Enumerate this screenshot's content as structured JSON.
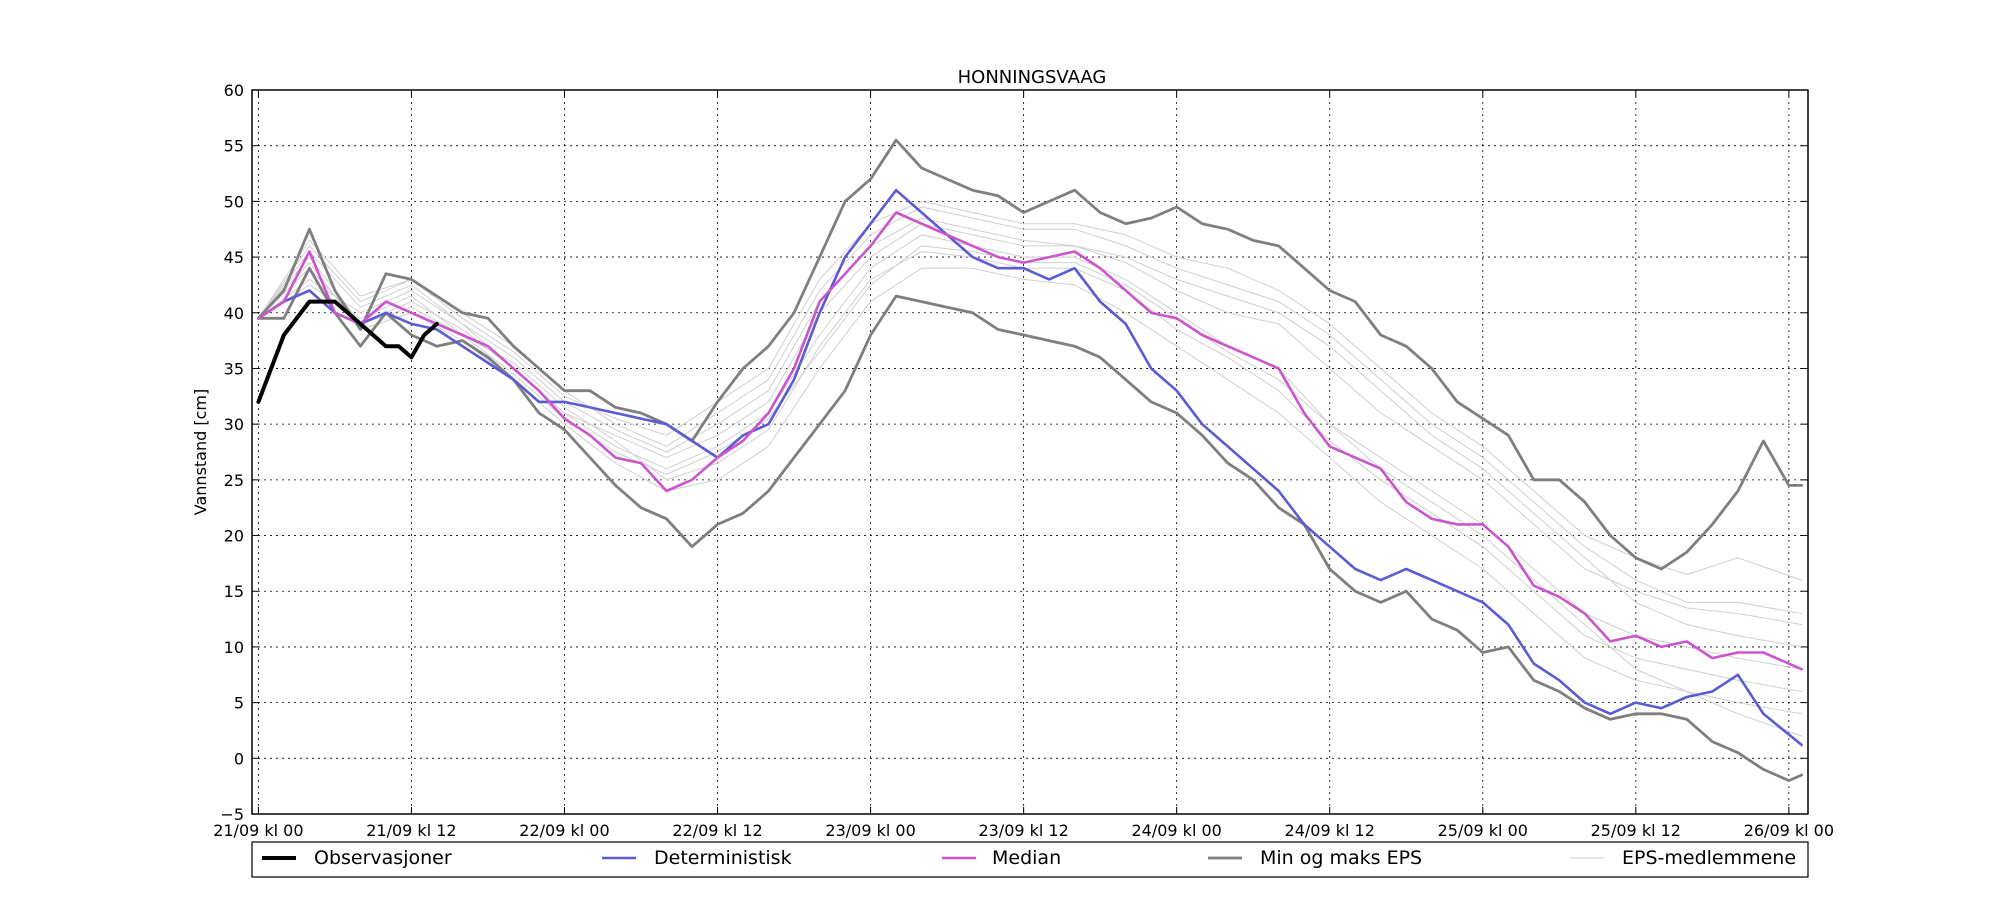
{
  "chart_data": {
    "type": "line",
    "title": "HONNINGSVAAG",
    "xlabel": "",
    "ylabel": "Vannstand [cm]",
    "ylim": [
      -5,
      60
    ],
    "xlim": [
      -0.5,
      121.5
    ],
    "yticks": [
      -5,
      0,
      5,
      10,
      15,
      20,
      25,
      30,
      35,
      40,
      45,
      50,
      55,
      60
    ],
    "ytick_labels": [
      "−5",
      "0",
      "5",
      "10",
      "15",
      "20",
      "25",
      "30",
      "35",
      "40",
      "45",
      "50",
      "55",
      "60"
    ],
    "x_unit": "hours since 21/09 kl 00",
    "xticks": [
      0,
      12,
      24,
      36,
      48,
      60,
      72,
      84,
      96,
      108,
      120
    ],
    "xtick_labels": [
      "21/09 kl 00",
      "21/09 kl 12",
      "22/09 kl 00",
      "22/09 kl 12",
      "23/09 kl 00",
      "23/09 kl 12",
      "24/09 kl 00",
      "24/09 kl 12",
      "25/09 kl 00",
      "25/09 kl 12",
      "26/09 kl 00"
    ],
    "grid": true,
    "legend_placement": "bottom",
    "legend": [
      "Observasjoner",
      "Deterministisk",
      "Median",
      "Min og maks EPS",
      "EPS-medlemmene"
    ],
    "series": [
      {
        "name": "Observasjoner",
        "color": "#000000",
        "x": [
          0,
          2,
          4,
          6,
          8,
          10,
          11,
          12,
          13,
          14
        ],
        "y": [
          32,
          38,
          41,
          41,
          39,
          37,
          37,
          36,
          38,
          39
        ]
      },
      {
        "name": "Deterministisk",
        "color": "#5b5bd4",
        "x": [
          0,
          2,
          4,
          6,
          8,
          10,
          12,
          14,
          16,
          18,
          20,
          22,
          24,
          26,
          28,
          30,
          32,
          34,
          36,
          38,
          40,
          42,
          44,
          46,
          48,
          50,
          52,
          54,
          56,
          58,
          60,
          62,
          64,
          66,
          68,
          70,
          72,
          74,
          76,
          78,
          80,
          82,
          84,
          86,
          88,
          90,
          92,
          94,
          96,
          98,
          100,
          102,
          104,
          106,
          108,
          110,
          112,
          114,
          116,
          118,
          121
        ],
        "y": [
          39.5,
          41,
          42,
          40,
          39,
          40,
          39,
          38.5,
          37,
          35.5,
          34,
          32,
          32,
          31.5,
          31,
          30.5,
          30,
          28.5,
          27,
          29,
          30,
          34,
          40,
          45,
          48,
          51,
          49,
          47,
          45,
          44,
          44,
          43,
          44,
          41,
          39,
          35,
          33,
          30,
          28,
          26,
          24,
          21,
          19,
          17,
          16,
          17,
          16,
          15,
          14,
          12,
          8.5,
          7,
          5,
          4,
          5,
          4.5,
          5.5,
          6,
          7.5,
          4,
          1.2
        ]
      },
      {
        "name": "Median",
        "color": "#cc55cc",
        "x": [
          0,
          2,
          4,
          6,
          8,
          10,
          12,
          14,
          16,
          18,
          20,
          22,
          24,
          26,
          28,
          30,
          32,
          34,
          36,
          38,
          40,
          42,
          44,
          46,
          48,
          50,
          52,
          54,
          56,
          58,
          60,
          62,
          64,
          66,
          68,
          70,
          72,
          74,
          76,
          78,
          80,
          82,
          84,
          86,
          88,
          90,
          92,
          94,
          96,
          98,
          100,
          102,
          104,
          106,
          108,
          110,
          112,
          114,
          116,
          118,
          121
        ],
        "y": [
          39.5,
          41,
          45.5,
          40,
          39,
          41,
          40,
          39,
          38,
          37,
          35,
          33,
          30.5,
          29,
          27,
          26.5,
          24,
          25,
          27,
          28.5,
          31,
          35,
          41,
          43.5,
          46,
          49,
          48,
          47,
          46,
          45,
          44.5,
          45,
          45.5,
          44,
          42,
          40,
          39.5,
          38,
          37,
          36,
          35,
          31,
          28,
          27,
          26,
          23,
          21.5,
          21,
          21,
          19,
          15.5,
          14.5,
          13,
          10.5,
          11,
          10,
          10.5,
          9,
          9.5,
          9.5,
          8
        ]
      },
      {
        "name": "Min og maks EPS",
        "color": "#7f7f7f",
        "x": [
          0,
          2,
          4,
          6,
          8,
          10,
          12,
          14,
          16,
          18,
          20,
          22,
          24,
          26,
          28,
          30,
          32,
          34,
          36,
          38,
          40,
          42,
          44,
          46,
          48,
          50,
          52,
          54,
          56,
          58,
          60,
          62,
          64,
          66,
          68,
          70,
          72,
          74,
          76,
          78,
          80,
          82,
          84,
          86,
          88,
          90,
          92,
          94,
          96,
          98,
          100,
          102,
          104,
          106,
          108,
          110,
          112,
          114,
          116,
          118,
          120,
          121
        ],
        "y": [
          39.5,
          42,
          47.5,
          42,
          38.5,
          43.5,
          43,
          41.5,
          40,
          39.5,
          37,
          35,
          33,
          33,
          31.5,
          31,
          30,
          28.5,
          32,
          35,
          37,
          40,
          45,
          50,
          52,
          55.5,
          53,
          52,
          51,
          50.5,
          49,
          50,
          51,
          49,
          48,
          48.5,
          49.5,
          48,
          47.5,
          46.5,
          46,
          44,
          42,
          41,
          38,
          37,
          35,
          32,
          30.5,
          29,
          25,
          25,
          23,
          20,
          18,
          17,
          18.5,
          21,
          24,
          28.5,
          24.5,
          24.5
        ]
      },
      {
        "name": "Min og maks EPS",
        "color": "#7f7f7f",
        "x": [
          0,
          2,
          4,
          6,
          8,
          10,
          12,
          14,
          16,
          18,
          20,
          22,
          24,
          26,
          28,
          30,
          32,
          34,
          36,
          38,
          40,
          42,
          44,
          46,
          48,
          50,
          52,
          54,
          56,
          58,
          60,
          62,
          64,
          66,
          68,
          70,
          72,
          74,
          76,
          78,
          80,
          82,
          84,
          86,
          88,
          90,
          92,
          94,
          96,
          98,
          100,
          102,
          104,
          106,
          108,
          110,
          112,
          114,
          116,
          118,
          120,
          121
        ],
        "y": [
          39.5,
          39.5,
          44,
          40,
          37,
          40,
          38,
          37,
          37.5,
          36,
          34,
          31,
          29.5,
          27,
          24.5,
          22.5,
          21.5,
          19,
          21,
          22,
          24,
          27,
          30,
          33,
          38,
          41.5,
          41,
          40.5,
          40,
          38.5,
          38,
          37.5,
          37,
          36,
          34,
          32,
          31,
          29,
          26.5,
          25,
          22.5,
          21,
          17,
          15,
          14,
          15,
          12.5,
          11.5,
          9.5,
          10,
          7,
          6,
          4.5,
          3.5,
          4,
          4,
          3.5,
          1.5,
          0.5,
          -1,
          -2,
          -1.5
        ]
      },
      {
        "name": "EPS-medlemmene",
        "color": "#d0d0d0",
        "x": [
          0,
          4,
          8,
          12,
          16,
          20,
          24,
          28,
          32,
          36,
          40,
          44,
          48,
          52,
          56,
          60,
          64,
          68,
          72,
          76,
          80,
          84,
          88,
          92,
          96,
          100,
          104,
          108,
          112,
          116,
          121
        ],
        "y": [
          39.5,
          45,
          39,
          41,
          38.5,
          35,
          31,
          28,
          26,
          28,
          31,
          38,
          44,
          47,
          46,
          45,
          45,
          43,
          40,
          37,
          35,
          30,
          27,
          24,
          21,
          17,
          13,
          11,
          10,
          9,
          8
        ]
      },
      {
        "name": "EPS-medlemmene",
        "color": "#d0d0d0",
        "x": [
          0,
          4,
          8,
          12,
          16,
          20,
          24,
          28,
          32,
          36,
          40,
          44,
          48,
          52,
          56,
          60,
          64,
          68,
          72,
          76,
          80,
          84,
          88,
          92,
          96,
          100,
          104,
          108,
          112,
          116,
          121
        ],
        "y": [
          39.5,
          43,
          40,
          42,
          39,
          36,
          32,
          29.5,
          27.5,
          30,
          33,
          41,
          46,
          48.5,
          47.5,
          46.5,
          46,
          44.5,
          42,
          40,
          39,
          35,
          31,
          28,
          25,
          21,
          17,
          15,
          13.5,
          13,
          12
        ]
      },
      {
        "name": "EPS-medlemmene",
        "color": "#d0d0d0",
        "x": [
          0,
          4,
          8,
          12,
          16,
          20,
          24,
          28,
          32,
          36,
          40,
          44,
          48,
          52,
          56,
          60,
          64,
          68,
          72,
          76,
          80,
          84,
          88,
          92,
          96,
          100,
          104,
          108,
          112,
          116,
          121
        ],
        "y": [
          39.5,
          44.5,
          38.5,
          40,
          37.5,
          34,
          30,
          26.5,
          24,
          25,
          28,
          35,
          41,
          44,
          44,
          43,
          42.5,
          40,
          37,
          34,
          31,
          27,
          23,
          20,
          17,
          13,
          9,
          7,
          6,
          5,
          4
        ]
      },
      {
        "name": "EPS-medlemmene",
        "color": "#d0d0d0",
        "x": [
          0,
          4,
          8,
          12,
          16,
          20,
          24,
          28,
          32,
          36,
          40,
          44,
          48,
          52,
          56,
          60,
          64,
          68,
          72,
          76,
          80,
          84,
          88,
          92,
          96,
          100,
          104,
          108,
          112,
          116,
          121
        ],
        "y": [
          39.5,
          46,
          41,
          43,
          39.5,
          36.5,
          32.5,
          30.5,
          29,
          32,
          35,
          43,
          48,
          50,
          49,
          48,
          48,
          47,
          45,
          44,
          42,
          39,
          35,
          31,
          28,
          24,
          20,
          18,
          16.5,
          18,
          16
        ]
      },
      {
        "name": "EPS-medlemmene",
        "color": "#d0d0d0",
        "x": [
          0,
          4,
          8,
          12,
          16,
          20,
          24,
          28,
          32,
          36,
          40,
          44,
          48,
          52,
          56,
          60,
          64,
          68,
          72,
          76,
          80,
          84,
          88,
          92,
          96,
          100,
          104,
          108,
          112,
          116,
          121
        ],
        "y": [
          39.5,
          42.5,
          39.5,
          41.5,
          38,
          35.5,
          31.5,
          28.5,
          25,
          26.5,
          29.5,
          37,
          43,
          45.5,
          45,
          44,
          44,
          42,
          38.5,
          36,
          33,
          28.5,
          25,
          22,
          19,
          15,
          11,
          9,
          8,
          7,
          6
        ]
      },
      {
        "name": "EPS-medlemmene",
        "color": "#d0d0d0",
        "x": [
          0,
          4,
          8,
          12,
          16,
          20,
          24,
          28,
          32,
          36,
          40,
          44,
          48,
          52,
          56,
          60,
          64,
          68,
          72,
          76,
          80,
          84,
          88,
          92,
          96,
          100,
          104,
          108,
          112,
          116,
          121
        ],
        "y": [
          39.5,
          45.5,
          40.5,
          42.5,
          39,
          35,
          31,
          29,
          27,
          29,
          32,
          40,
          45,
          48,
          47,
          46,
          46,
          45,
          43,
          41.5,
          40,
          37,
          33,
          29,
          26,
          22,
          18,
          14,
          12,
          11,
          10
        ]
      },
      {
        "name": "EPS-medlemmene",
        "color": "#d0d0d0",
        "x": [
          0,
          4,
          8,
          12,
          16,
          20,
          24,
          28,
          32,
          36,
          40,
          44,
          48,
          52,
          56,
          60,
          64,
          68,
          72,
          76,
          80,
          84,
          88,
          92,
          96,
          100,
          104,
          108,
          112,
          116,
          121
        ],
        "y": [
          39.5,
          44,
          39,
          40.5,
          38,
          34.5,
          30.5,
          27.5,
          25.5,
          27.5,
          30.5,
          36.5,
          42.5,
          46,
          45.5,
          44.5,
          44.5,
          42.5,
          39.5,
          36.5,
          34,
          30,
          26,
          23,
          20,
          16,
          12,
          8,
          6,
          4,
          2
        ]
      },
      {
        "name": "EPS-medlemmene",
        "color": "#d0d0d0",
        "x": [
          0,
          4,
          8,
          12,
          16,
          20,
          24,
          28,
          32,
          36,
          40,
          44,
          48,
          52,
          56,
          60,
          64,
          68,
          72,
          76,
          80,
          84,
          88,
          92,
          96,
          100,
          104,
          108,
          112,
          116,
          121
        ],
        "y": [
          39.5,
          46.5,
          41.5,
          43,
          40,
          37,
          33,
          30,
          28,
          31,
          34,
          42,
          47,
          49.5,
          48.5,
          47.5,
          47.5,
          46,
          44,
          42.5,
          41,
          38,
          34,
          30,
          27,
          23,
          19,
          16,
          14,
          14,
          13
        ]
      }
    ]
  }
}
